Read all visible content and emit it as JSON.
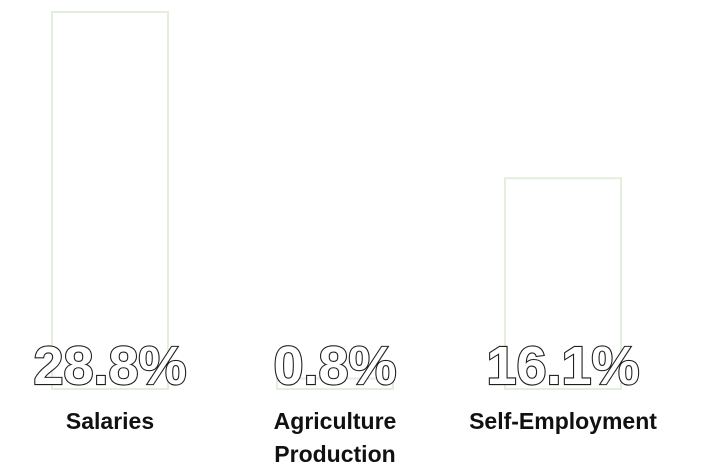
{
  "chart_data": {
    "type": "bar",
    "categories": [
      [
        "Salaries"
      ],
      [
        "Agriculture",
        "Production"
      ],
      [
        "Self-Employment"
      ]
    ],
    "values": [
      28.8,
      0.8,
      16.1
    ],
    "value_labels": [
      "28.8%",
      "0.8%",
      "16.1%"
    ],
    "bar_outline_color": "#e3eedd",
    "label_color": "#111111"
  }
}
